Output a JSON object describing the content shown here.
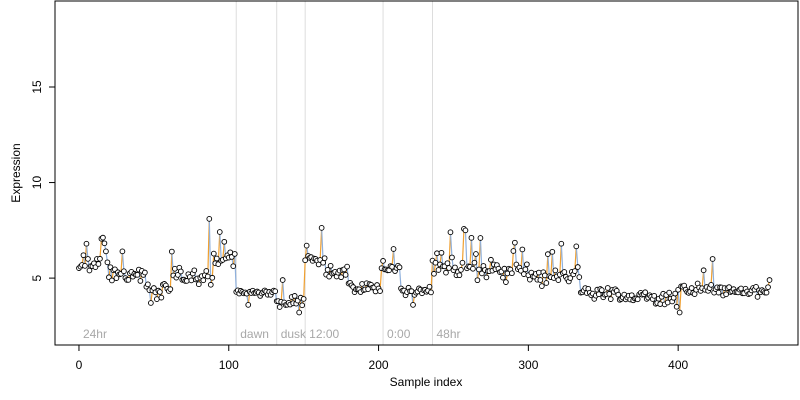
{
  "chart_data": {
    "type": "scatter",
    "title": "",
    "xlabel": "Sample index",
    "ylabel": "Expression",
    "xlim": [
      -16,
      480
    ],
    "ylim": [
      1.5,
      19.5
    ],
    "x_ticks": [
      0,
      100,
      200,
      300,
      400
    ],
    "y_ticks": [
      5,
      10,
      15
    ],
    "grid": false,
    "legend": "none",
    "colors": {
      "points_fill": "#ffffff",
      "points_stroke": "#000000",
      "line_up": "#f0a030",
      "line_down": "#8fb0dc",
      "region_lines": "#dddddd",
      "region_text": "#a8a8a8"
    },
    "regions": [
      {
        "label": "24hr",
        "x": 0
      },
      {
        "label": "dawn",
        "x": 105
      },
      {
        "label": "dusk",
        "x": 132
      },
      {
        "label": "12:00",
        "x": 151
      },
      {
        "label": "0:00",
        "x": 203
      },
      {
        "label": "48hr",
        "x": 236
      }
    ],
    "segments": [
      {
        "start": 0,
        "level": 5.7,
        "noise": 0.45,
        "spike_chance": 0.05
      },
      {
        "start": 20,
        "level": 5.2,
        "noise": 0.5,
        "spike_chance": 0.04
      },
      {
        "start": 45,
        "level": 4.4,
        "noise": 0.4,
        "spike_chance": 0.03
      },
      {
        "start": 62,
        "level": 5.1,
        "noise": 0.5,
        "spike_chance": 0.06
      },
      {
        "start": 90,
        "level": 6.0,
        "noise": 0.55,
        "spike_chance": 0.05
      },
      {
        "start": 105,
        "level": 4.25,
        "noise": 0.22,
        "spike_chance": 0.0
      },
      {
        "start": 132,
        "level": 3.75,
        "noise": 0.3,
        "spike_chance": 0.0
      },
      {
        "start": 151,
        "level": 6.0,
        "noise": 0.35,
        "spike_chance": 0.03
      },
      {
        "start": 165,
        "level": 5.3,
        "noise": 0.4,
        "spike_chance": 0.03
      },
      {
        "start": 180,
        "level": 4.5,
        "noise": 0.3,
        "spike_chance": 0.02
      },
      {
        "start": 203,
        "level": 5.4,
        "noise": 0.4,
        "spike_chance": 0.03
      },
      {
        "start": 215,
        "level": 4.3,
        "noise": 0.3,
        "spike_chance": 0.0
      },
      {
        "start": 236,
        "level": 5.6,
        "noise": 0.8,
        "spike_chance": 0.1
      },
      {
        "start": 270,
        "level": 5.4,
        "noise": 0.6,
        "spike_chance": 0.06
      },
      {
        "start": 300,
        "level": 5.1,
        "noise": 0.55,
        "spike_chance": 0.05
      },
      {
        "start": 335,
        "level": 4.3,
        "noise": 0.4,
        "spike_chance": 0.03
      },
      {
        "start": 360,
        "level": 4.0,
        "noise": 0.4,
        "spike_chance": 0.02
      },
      {
        "start": 400,
        "level": 4.4,
        "noise": 0.35,
        "spike_chance": 0.02
      },
      {
        "start": 430,
        "level": 4.3,
        "noise": 0.35,
        "spike_chance": 0.03
      },
      {
        "start": 462,
        "level": 4.3,
        "noise": 0.0,
        "spike_chance": 0.0
      }
    ],
    "anchors": [
      {
        "x": 3,
        "y": 6.2
      },
      {
        "x": 5,
        "y": 6.8
      },
      {
        "x": 18,
        "y": 6.4
      },
      {
        "x": 29,
        "y": 6.4
      },
      {
        "x": 48,
        "y": 3.7
      },
      {
        "x": 52,
        "y": 3.9
      },
      {
        "x": 87,
        "y": 8.1
      },
      {
        "x": 97,
        "y": 6.9
      },
      {
        "x": 113,
        "y": 3.6
      },
      {
        "x": 136,
        "y": 4.9
      },
      {
        "x": 147,
        "y": 3.2
      },
      {
        "x": 152,
        "y": 6.7
      },
      {
        "x": 203,
        "y": 5.9
      },
      {
        "x": 223,
        "y": 3.6
      },
      {
        "x": 239,
        "y": 6.3
      },
      {
        "x": 248,
        "y": 7.4
      },
      {
        "x": 258,
        "y": 7.5
      },
      {
        "x": 268,
        "y": 7.1
      },
      {
        "x": 296,
        "y": 6.5
      },
      {
        "x": 322,
        "y": 6.8
      },
      {
        "x": 399,
        "y": 3.5
      },
      {
        "x": 401,
        "y": 3.2
      },
      {
        "x": 461,
        "y": 4.9
      }
    ],
    "n_points": 462,
    "seed": 20240
  }
}
